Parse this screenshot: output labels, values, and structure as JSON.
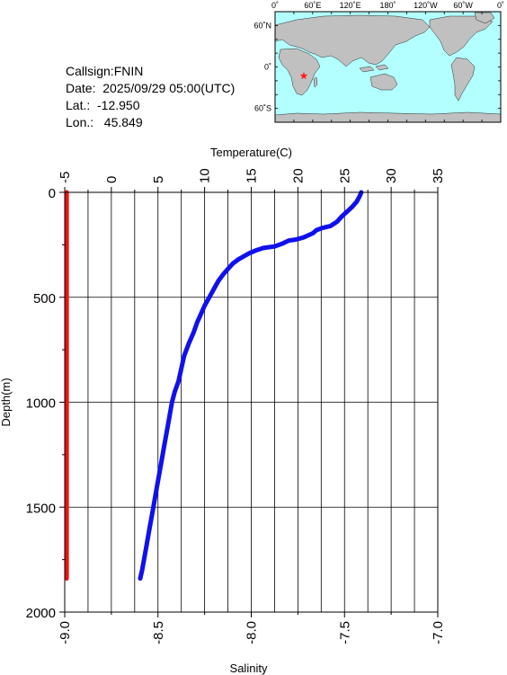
{
  "info": {
    "callsign": "Callsign:FNIN",
    "date": "Date:  2025/09/29 05:00(UTC)",
    "lat": "Lat.:  -12.950",
    "lon": "Lon.:   45.849"
  },
  "map": {
    "lon_labels": [
      "0˚",
      "60˚E",
      "120˚E",
      "180˚",
      "120˚W",
      "60˚W",
      "0˚"
    ],
    "lat_labels": [
      "60˚N",
      "0˚",
      "60˚S"
    ],
    "station": {
      "lat": -12.95,
      "lon": 45.849
    },
    "ocean_color": "#b3ffff",
    "land_color": "#c0c0c0",
    "marker_color": "#ff2020"
  },
  "chart_data": {
    "type": "line",
    "top_axis": {
      "label": "Temperature(C)",
      "range": [
        -5,
        35
      ],
      "ticks": [
        "-5",
        "0",
        "5",
        "10",
        "15",
        "20",
        "25",
        "30",
        "35"
      ]
    },
    "bottom_axis": {
      "label": "Salinity",
      "range": [
        -9.0,
        -7.0
      ],
      "ticks": [
        "-9.0",
        "-8.5",
        "-8.0",
        "-7.5",
        "-7.0"
      ]
    },
    "y_axis": {
      "label": "Depth(m)",
      "range": [
        0,
        2000
      ],
      "inverted": true,
      "ticks": [
        "0",
        "500",
        "1000",
        "1500",
        "2000"
      ]
    },
    "grid": true,
    "series": [
      {
        "axis": "temperature",
        "color": "#1010ee",
        "points": [
          [
            26.8,
            0
          ],
          [
            26.6,
            20
          ],
          [
            26.3,
            45
          ],
          [
            25.8,
            70
          ],
          [
            25.2,
            95
          ],
          [
            24.7,
            115
          ],
          [
            24.2,
            140
          ],
          [
            23.5,
            160
          ],
          [
            22.6,
            170
          ],
          [
            22.0,
            180
          ],
          [
            21.6,
            195
          ],
          [
            20.6,
            215
          ],
          [
            19.8,
            225
          ],
          [
            19.0,
            230
          ],
          [
            18.3,
            245
          ],
          [
            17.5,
            258
          ],
          [
            16.3,
            265
          ],
          [
            15.6,
            275
          ],
          [
            14.8,
            290
          ],
          [
            14.2,
            305
          ],
          [
            13.6,
            320
          ],
          [
            13.0,
            340
          ],
          [
            12.5,
            365
          ],
          [
            12.0,
            390
          ],
          [
            11.5,
            420
          ],
          [
            11.0,
            460
          ],
          [
            10.5,
            500
          ],
          [
            10.0,
            540
          ],
          [
            9.6,
            580
          ],
          [
            9.2,
            620
          ],
          [
            8.8,
            670
          ],
          [
            8.3,
            720
          ],
          [
            7.8,
            780
          ],
          [
            7.5,
            840
          ],
          [
            7.2,
            900
          ],
          [
            6.8,
            950
          ],
          [
            6.5,
            1000
          ],
          [
            6.1,
            1100
          ],
          [
            5.7,
            1200
          ],
          [
            5.3,
            1300
          ],
          [
            4.9,
            1400
          ],
          [
            4.5,
            1500
          ],
          [
            4.1,
            1600
          ],
          [
            3.7,
            1700
          ],
          [
            3.3,
            1800
          ],
          [
            3.1,
            1840
          ]
        ]
      },
      {
        "axis": "salinity",
        "color": "#ee1010",
        "points": [
          [
            -8.99,
            0
          ],
          [
            -8.99,
            1840
          ]
        ]
      }
    ]
  }
}
